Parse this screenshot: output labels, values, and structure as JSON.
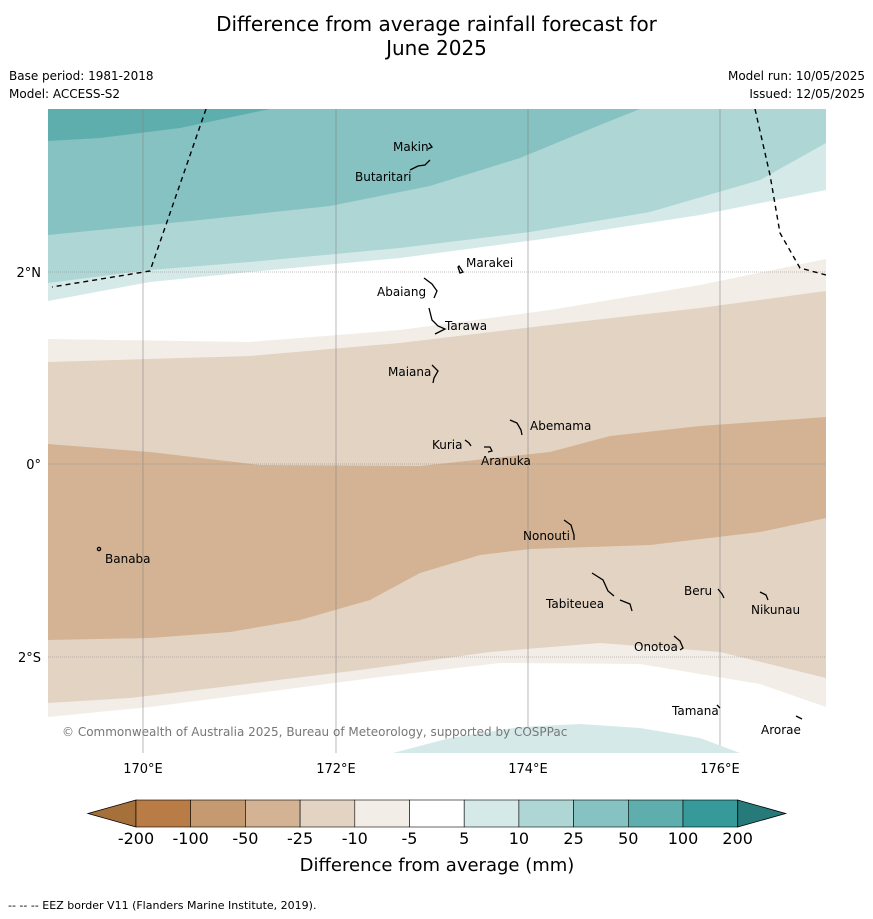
{
  "title_line1": "Difference from average rainfall forecast for",
  "title_line2": "June 2025",
  "meta_left": {
    "base_period": "Base period: 1981-2018",
    "model": "Model: ACCESS-S2"
  },
  "meta_right": {
    "model_run": "Model run: 10/05/2025",
    "issued": "Issued: 12/05/2025"
  },
  "map": {
    "lon_labels": [
      "170°E",
      "172°E",
      "174°E",
      "176°E"
    ],
    "lat_labels": [
      "2°N",
      "0°",
      "2°S"
    ],
    "copyright": "© Commonwealth of Australia 2025, Bureau of Meteorology, supported by COSPPac",
    "places": [
      "Makin",
      "Butaritari",
      "Marakei",
      "Abaiang",
      "Tarawa",
      "Maiana",
      "Abemama",
      "Kuria",
      "Aranuka",
      "Nonouti",
      "Banaba",
      "Tabiteuea",
      "Beru",
      "Nikunau",
      "Onotoa",
      "Tamana",
      "Arorae"
    ]
  },
  "colorbar": {
    "ticks": [
      "-200",
      "-100",
      "-50",
      "-25",
      "-10",
      "-5",
      "5",
      "10",
      "25",
      "50",
      "100",
      "200"
    ],
    "colors": [
      "#a5703a",
      "#b97c46",
      "#c59a70",
      "#d3b393",
      "#e3d3c3",
      "#f3ede8",
      "#ffffff",
      "#d6e9e9",
      "#aed6d5",
      "#86c2c1",
      "#5eaead",
      "#36999a",
      "#267a7a"
    ],
    "label": "Difference from average (mm)"
  },
  "footer": "--  --  -- EEZ border V11 (Flanders Marine Institute, 2019)."
}
